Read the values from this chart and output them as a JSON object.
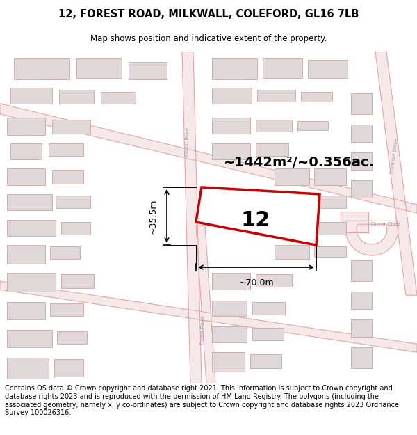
{
  "title": "12, FOREST ROAD, MILKWALL, COLEFORD, GL16 7LB",
  "subtitle": "Map shows position and indicative extent of the property.",
  "area_label": "~1442m²/~0.356ac.",
  "plot_number": "12",
  "width_label": "~70.0m",
  "height_label": "~35.5m",
  "footer_text": "Contains OS data © Crown copyright and database right 2021. This information is subject to Crown copyright and database rights 2023 and is reproduced with the permission of HM Land Registry. The polygons (including the associated geometry, namely x, y co-ordinates) are subject to Crown copyright and database rights 2023 Ordnance Survey 100026316.",
  "map_bg": "#ffffff",
  "road_fill": "#f5e8e8",
  "road_edge": "#e8a0a0",
  "building_fill": "#e0d8d8",
  "building_edge": "#c8a8a8",
  "plot_edge_color": "#cc0000",
  "plot_fill": "#ffffff",
  "title_fontsize": 10.5,
  "subtitle_fontsize": 8.5,
  "footer_fontsize": 7.0,
  "area_label_fontsize": 14,
  "plot_num_fontsize": 22,
  "dim_fontsize": 9,
  "road_label_fontsize": 5,
  "road_lw": 0.7,
  "building_lw": 0.6
}
